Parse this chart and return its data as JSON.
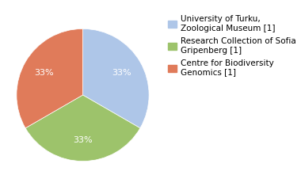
{
  "labels": [
    "University of Turku,\nZoological Museum [1]",
    "Research Collection of Sofia\nGripenberg [1]",
    "Centre for Biodiversity\nGenomics [1]"
  ],
  "values": [
    1,
    1,
    1
  ],
  "colors": [
    "#aec6e8",
    "#9dc36b",
    "#e07b5a"
  ],
  "startangle": 90,
  "pct_distance": 0.68,
  "text_color": "white",
  "font_size": 8,
  "legend_font_size": 7.5,
  "counterclock": false
}
